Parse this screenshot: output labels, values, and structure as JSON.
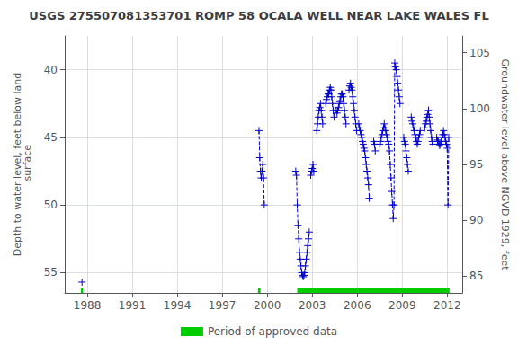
{
  "chart_data": {
    "type": "line",
    "title": "USGS 275507081353701 ROMP 58 OCALA WELL NEAR LAKE WALES FL",
    "ylabel": "Depth to water level, feet below land\n surface",
    "y2label": "Groundwater level above NGVD 1929, feet",
    "xlim": [
      1986.5,
      2013.0
    ],
    "xticks": [
      1988,
      1991,
      1994,
      1997,
      2000,
      2003,
      2006,
      2009,
      2012
    ],
    "ylim": [
      56.5,
      37.5
    ],
    "yticks": [
      40,
      45,
      50,
      55
    ],
    "y2lim": [
      83.5,
      106.5
    ],
    "y2ticks": [
      85,
      90,
      95,
      100,
      105
    ],
    "grid": true,
    "legend": "bottom",
    "series": [
      {
        "color": "#0000cc",
        "marker": "+",
        "line_style": "none",
        "x": [
          1987.65
        ],
        "values": [
          55.7
        ]
      },
      {
        "color": "#0000cc",
        "marker": "+",
        "line_style": "dashed",
        "x": [
          1999.45,
          1999.5,
          1999.55,
          1999.6,
          1999.65,
          1999.7,
          1999.75,
          1999.8
        ],
        "values": [
          44.5,
          46.5,
          47.5,
          48.0,
          47.5,
          47.0,
          48.0,
          50.0
        ]
      },
      {
        "color": "#0000cc",
        "marker": "+",
        "line_style": "dashed",
        "x": [
          2001.9,
          2001.95,
          2002.0,
          2002.05,
          2002.1,
          2002.15,
          2002.2,
          2002.25,
          2002.3,
          2002.35,
          2002.4,
          2002.45,
          2002.5,
          2002.55,
          2002.6,
          2002.65,
          2002.7,
          2002.75,
          2002.8
        ],
        "values": [
          47.5,
          47.8,
          50.0,
          51.5,
          52.5,
          53.5,
          54.0,
          54.5,
          55.0,
          55.2,
          55.3,
          55.2,
          55.0,
          54.5,
          54.0,
          53.5,
          53.0,
          52.5,
          52.0
        ]
      },
      {
        "color": "#0000cc",
        "marker": "+",
        "line_style": "dashed",
        "x": [
          2002.9,
          2002.95,
          2003.0,
          2003.05,
          2003.1
        ],
        "values": [
          47.8,
          47.5,
          47.3,
          47.0,
          47.5
        ]
      },
      {
        "color": "#0000cc",
        "marker": "+",
        "line_style": "dashed",
        "x": [
          2003.3,
          2003.35,
          2003.4,
          2003.45,
          2003.5,
          2003.55,
          2003.6,
          2003.65,
          2003.7
        ],
        "values": [
          44.5,
          44.0,
          43.5,
          43.0,
          42.8,
          42.5,
          43.0,
          43.5,
          44.0
        ]
      },
      {
        "color": "#0000cc",
        "marker": "+",
        "line_style": "dashed",
        "x": [
          2003.9,
          2003.95,
          2004.0,
          2004.05,
          2004.1,
          2004.15,
          2004.2,
          2004.25,
          2004.3,
          2004.35,
          2004.4,
          2004.45
        ],
        "values": [
          42.5,
          42.2,
          42.0,
          41.8,
          41.8,
          41.5,
          41.3,
          41.5,
          42.0,
          42.5,
          43.0,
          43.5
        ]
      },
      {
        "color": "#0000cc",
        "marker": "+",
        "line_style": "dashed",
        "x": [
          2004.6,
          2004.65,
          2004.7,
          2004.75,
          2004.8,
          2004.85,
          2004.9,
          2004.95,
          2005.0,
          2005.05,
          2005.1,
          2005.15,
          2005.2,
          2005.25
        ],
        "values": [
          43.0,
          43.2,
          43.0,
          42.8,
          42.5,
          42.3,
          42.0,
          41.8,
          41.8,
          42.0,
          42.5,
          43.0,
          43.5,
          44.0
        ]
      },
      {
        "color": "#0000cc",
        "marker": "+",
        "line_style": "dashed",
        "x": [
          2005.45,
          2005.5,
          2005.55,
          2005.6,
          2005.65,
          2005.7,
          2005.75,
          2005.8,
          2005.85,
          2005.9,
          2005.95
        ],
        "values": [
          41.5,
          41.2,
          41.0,
          41.3,
          41.5,
          42.0,
          42.5,
          43.0,
          43.5,
          44.0,
          44.5
        ]
      },
      {
        "color": "#0000cc",
        "marker": "+",
        "line_style": "dashed",
        "x": [
          2006.1,
          2006.15,
          2006.2,
          2006.25,
          2006.3,
          2006.35,
          2006.4,
          2006.45,
          2006.5,
          2006.55,
          2006.6,
          2006.65,
          2006.7,
          2006.75,
          2006.8
        ],
        "values": [
          44.0,
          44.3,
          44.5,
          44.8,
          45.0,
          45.3,
          45.5,
          45.8,
          46.0,
          46.5,
          47.0,
          47.5,
          48.0,
          48.5,
          49.5
        ]
      },
      {
        "color": "#0000cc",
        "marker": "+",
        "line_style": "dashed",
        "x": [
          2007.1,
          2007.15,
          2007.2
        ],
        "values": [
          45.3,
          45.5,
          46.0
        ]
      },
      {
        "color": "#0000cc",
        "marker": "+",
        "line_style": "dashed",
        "x": [
          2007.5,
          2007.55,
          2007.6,
          2007.65,
          2007.7,
          2007.75,
          2007.8,
          2007.85,
          2007.9,
          2007.95,
          2008.0,
          2008.05,
          2008.1,
          2008.15,
          2008.2,
          2008.25,
          2008.3,
          2008.35,
          2008.4,
          2008.45,
          2008.5,
          2008.55,
          2008.6,
          2008.65,
          2008.7,
          2008.75,
          2008.8,
          2008.85
        ],
        "values": [
          45.5,
          45.3,
          45.0,
          44.8,
          44.5,
          44.3,
          44.0,
          44.3,
          44.5,
          44.8,
          45.0,
          45.3,
          45.5,
          46.0,
          47.0,
          48.0,
          49.0,
          50.0,
          51.0,
          50.0,
          39.5,
          39.8,
          40.0,
          40.5,
          41.0,
          41.5,
          42.0,
          42.5
        ]
      },
      {
        "color": "#0000cc",
        "marker": "+",
        "line_style": "dashed",
        "x": [
          2009.1,
          2009.15,
          2009.2,
          2009.25,
          2009.3,
          2009.35,
          2009.4
        ],
        "values": [
          45.0,
          45.3,
          45.5,
          46.0,
          46.5,
          47.0,
          47.5
        ]
      },
      {
        "color": "#0000cc",
        "marker": "+",
        "line_style": "dashed",
        "x": [
          2009.6,
          2009.65,
          2009.7,
          2009.75,
          2009.8,
          2009.85,
          2009.9,
          2009.95,
          2010.0,
          2010.05,
          2010.1,
          2010.15,
          2010.2
        ],
        "values": [
          43.5,
          43.8,
          44.0,
          44.3,
          44.5,
          44.8,
          45.0,
          45.3,
          45.5,
          45.3,
          45.0,
          44.8,
          44.5
        ]
      },
      {
        "color": "#0000cc",
        "marker": "+",
        "line_style": "dashed",
        "x": [
          2010.5,
          2010.55,
          2010.6,
          2010.65,
          2010.7,
          2010.75,
          2010.8,
          2010.85,
          2010.9,
          2010.95,
          2011.0,
          2011.05
        ],
        "values": [
          44.3,
          44.0,
          43.8,
          43.5,
          43.3,
          43.0,
          43.5,
          44.0,
          44.5,
          45.0,
          45.3,
          45.5
        ]
      },
      {
        "color": "#0000cc",
        "marker": "+",
        "line_style": "dashed",
        "x": [
          2011.3,
          2011.35,
          2011.4,
          2011.45,
          2011.5,
          2011.55,
          2011.6,
          2011.65,
          2011.7,
          2011.75,
          2011.8,
          2011.85,
          2011.9,
          2011.95,
          2012.0,
          2012.05,
          2012.1
        ],
        "values": [
          45.0,
          45.2,
          45.3,
          45.5,
          45.6,
          45.5,
          45.3,
          45.0,
          44.8,
          44.5,
          44.8,
          45.0,
          45.3,
          45.5,
          45.8,
          50.0,
          45.0
        ]
      },
      {
        "name": "Period of approved data",
        "type": "span",
        "color": "#00cc00",
        "ranges": [
          [
            1987.58,
            1987.72
          ],
          [
            1999.38,
            1999.55
          ],
          [
            2002.0,
            2012.15
          ]
        ]
      }
    ]
  }
}
